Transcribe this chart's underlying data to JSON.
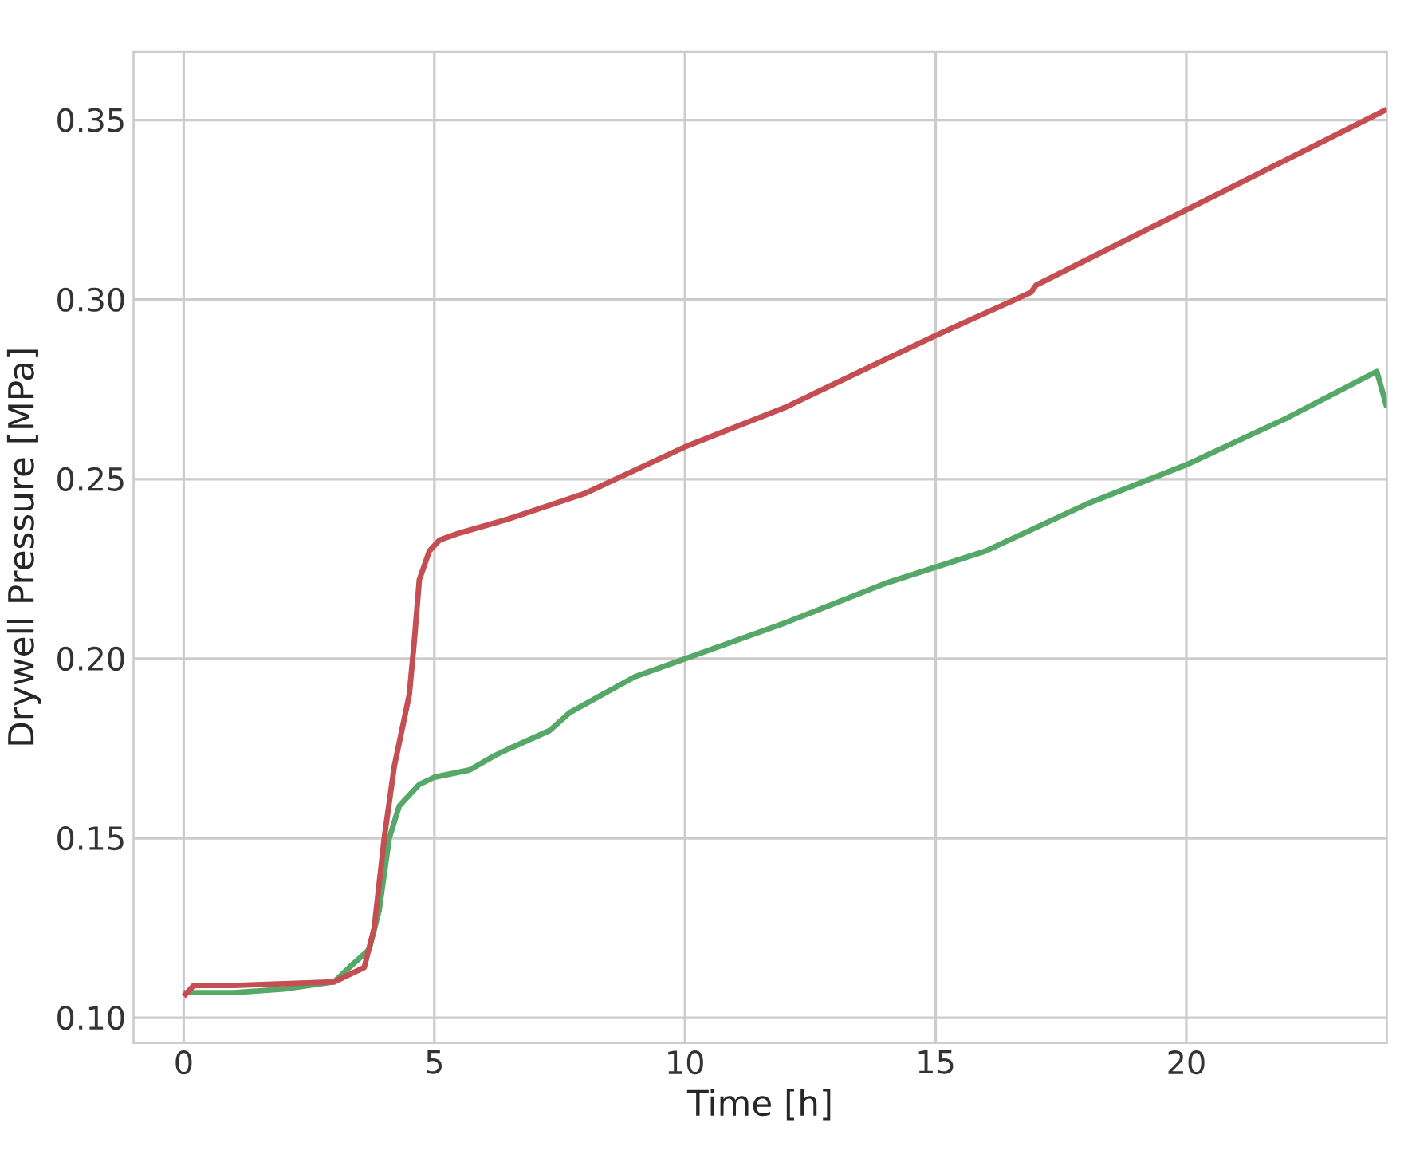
{
  "chart_data": {
    "type": "line",
    "xlabel": "Time [h]",
    "ylabel": "Drywell Pressure [MPa]",
    "xlim": [
      -1,
      24
    ],
    "ylim": [
      0.093,
      0.369
    ],
    "xticks": [
      0,
      5,
      10,
      15,
      20
    ],
    "yticks": [
      {
        "value": 0.1,
        "label": "0.10"
      },
      0.15,
      {
        "value": 0.2,
        "label": "0.20"
      },
      0.25,
      {
        "value": 0.3,
        "label": "0.30"
      },
      0.35
    ],
    "grid": true,
    "line_style": "solid",
    "series": [
      {
        "color": "#55a868",
        "x": [
          0,
          1,
          2,
          3,
          3.3,
          3.7,
          3.9,
          4.1,
          4.3,
          4.7,
          5,
          5.7,
          6.2,
          6.5,
          7.3,
          7.7,
          9,
          10,
          12,
          14,
          16,
          18,
          20,
          22,
          23.8,
          24
        ],
        "values": [
          0.107,
          0.107,
          0.108,
          0.11,
          0.114,
          0.119,
          0.13,
          0.15,
          0.159,
          0.165,
          0.167,
          0.169,
          0.173,
          0.175,
          0.18,
          0.185,
          0.195,
          0.2,
          0.21,
          0.221,
          0.23,
          0.243,
          0.254,
          0.267,
          0.28,
          0.27
        ]
      },
      {
        "color": "#c44e52",
        "x": [
          0,
          0.2,
          1,
          2,
          3,
          3.3,
          3.6,
          3.8,
          4,
          4.2,
          4.5,
          4.6,
          4.7,
          4.9,
          5.1,
          5.5,
          6.5,
          8,
          10,
          12,
          15,
          16.9,
          17,
          20,
          22,
          24
        ],
        "values": [
          0.106,
          0.109,
          0.109,
          0.1095,
          0.11,
          0.112,
          0.114,
          0.125,
          0.15,
          0.17,
          0.19,
          0.205,
          0.222,
          0.23,
          0.233,
          0.235,
          0.239,
          0.246,
          0.259,
          0.27,
          0.29,
          0.302,
          0.304,
          0.325,
          0.339,
          0.353
        ]
      }
    ]
  }
}
